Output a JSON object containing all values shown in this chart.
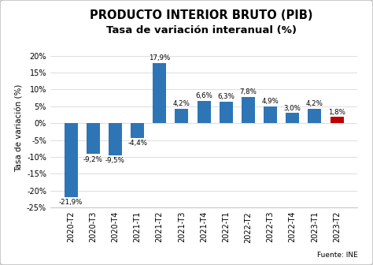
{
  "title1": "PRODUCTO INTERIOR BRUTO (PIB)",
  "title2": "Tasa de variación interanual (%)",
  "categories": [
    "2020-T2",
    "2020-T3",
    "2020-T4",
    "2021-T1",
    "2021-T2",
    "2021-T3",
    "2021-T4",
    "2022-T1",
    "2022-T2",
    "2022-T3",
    "2022-T4",
    "2023-T1",
    "2023-T2"
  ],
  "values": [
    -21.9,
    -9.2,
    -9.5,
    -4.4,
    17.9,
    4.2,
    6.6,
    6.3,
    7.8,
    4.9,
    3.0,
    4.2,
    1.8
  ],
  "bar_colors": [
    "#2e75b6",
    "#2e75b6",
    "#2e75b6",
    "#2e75b6",
    "#2e75b6",
    "#2e75b6",
    "#2e75b6",
    "#2e75b6",
    "#2e75b6",
    "#2e75b6",
    "#2e75b6",
    "#2e75b6",
    "#c00000"
  ],
  "labels": [
    "-21,9%",
    "-9,2%",
    "-9,5%",
    "-4,4%",
    "17,9%",
    "4,2%",
    "6,6%",
    "6,3%",
    "7,8%",
    "4,9%",
    "3,0%",
    "4,2%",
    "1,8%"
  ],
  "ylabel": "Tasa de variación (%)",
  "ylim": [
    -25,
    22
  ],
  "yticks": [
    -25,
    -20,
    -15,
    -10,
    -5,
    0,
    5,
    10,
    15,
    20
  ],
  "ytick_labels": [
    "-25%",
    "-20%",
    "-15%",
    "-10%",
    "-5%",
    "0%",
    "5%",
    "10%",
    "15%",
    "20%"
  ],
  "source": "Fuente: INE",
  "bg_color": "#ffffff",
  "title1_fontsize": 10.5,
  "title2_fontsize": 9.5,
  "label_fontsize": 6.2,
  "axis_fontsize": 7,
  "ylabel_fontsize": 7.5,
  "border_color": "#c0c0c0"
}
